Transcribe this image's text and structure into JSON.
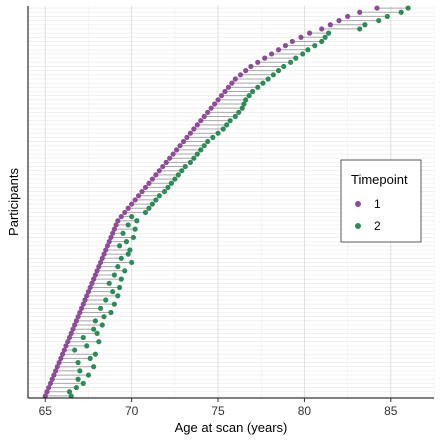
{
  "chart_data": {
    "type": "dumbbell",
    "xlabel": "Age at scan (years)",
    "ylabel": "Participants",
    "xlim": [
      64,
      87.5
    ],
    "xticks": [
      65,
      70,
      75,
      80,
      85
    ],
    "grid": true,
    "legend": {
      "title": "Timepoint",
      "placement": "right",
      "entries": [
        {
          "label": "1",
          "color": "#8E4B98"
        },
        {
          "label": "2",
          "color": "#2E8B57"
        }
      ]
    },
    "colors": {
      "timepoint1": "#8E4B98",
      "timepoint2": "#2E8B57",
      "segment": "#A8A8A8"
    },
    "participants": [
      [
        65.0,
        66.5
      ],
      [
        65.1,
        66.4
      ],
      [
        65.2,
        66.8
      ],
      [
        65.3,
        67.2
      ],
      [
        65.4,
        66.9
      ],
      [
        65.5,
        67.5
      ],
      [
        65.6,
        67.0
      ],
      [
        65.7,
        67.8
      ],
      [
        65.8,
        66.9
      ],
      [
        65.9,
        67.6
      ],
      [
        66.0,
        67.9
      ],
      [
        66.1,
        66.7
      ],
      [
        66.2,
        67.4
      ],
      [
        66.3,
        68.1
      ],
      [
        66.4,
        67.2
      ],
      [
        66.5,
        68.0
      ],
      [
        66.6,
        67.8
      ],
      [
        66.7,
        68.3
      ],
      [
        66.8,
        67.9
      ],
      [
        66.9,
        68.4
      ],
      [
        67.0,
        68.8
      ],
      [
        67.1,
        68.2
      ],
      [
        67.2,
        69.0
      ],
      [
        67.3,
        68.5
      ],
      [
        67.4,
        69.2
      ],
      [
        67.5,
        68.9
      ],
      [
        67.6,
        69.3
      ],
      [
        67.7,
        68.7
      ],
      [
        67.8,
        69.4
      ],
      [
        67.9,
        69.0
      ],
      [
        68.0,
        69.6
      ],
      [
        68.1,
        69.2
      ],
      [
        68.2,
        70.0
      ],
      [
        68.3,
        69.4
      ],
      [
        68.4,
        69.8
      ],
      [
        68.5,
        69.9
      ],
      [
        68.6,
        69.3
      ],
      [
        68.7,
        69.7
      ],
      [
        68.8,
        70.1
      ],
      [
        68.9,
        69.5
      ],
      [
        69.0,
        70.2
      ],
      [
        69.1,
        69.8
      ],
      [
        69.2,
        70.3
      ],
      [
        69.4,
        70.0
      ],
      [
        69.6,
        70.8
      ],
      [
        69.8,
        71.0
      ],
      [
        70.0,
        71.2
      ],
      [
        70.2,
        71.4
      ],
      [
        70.4,
        71.6
      ],
      [
        70.6,
        71.9
      ],
      [
        70.8,
        72.1
      ],
      [
        71.0,
        72.3
      ],
      [
        71.2,
        72.5
      ],
      [
        71.4,
        72.7
      ],
      [
        71.6,
        72.9
      ],
      [
        71.8,
        73.1
      ],
      [
        72.0,
        73.4
      ],
      [
        72.2,
        73.6
      ],
      [
        72.4,
        73.8
      ],
      [
        72.6,
        74.0
      ],
      [
        72.8,
        74.2
      ],
      [
        73.0,
        74.4
      ],
      [
        73.2,
        74.7
      ],
      [
        73.4,
        75.0
      ],
      [
        73.6,
        75.3
      ],
      [
        73.8,
        75.5
      ],
      [
        74.0,
        75.7
      ],
      [
        74.2,
        76.0
      ],
      [
        74.4,
        76.2
      ],
      [
        74.6,
        76.4
      ],
      [
        74.8,
        76.5
      ],
      [
        75.0,
        76.6
      ],
      [
        75.2,
        76.8
      ],
      [
        75.4,
        77.0
      ],
      [
        75.6,
        77.3
      ],
      [
        75.8,
        77.6
      ],
      [
        76.0,
        77.9
      ],
      [
        76.3,
        78.2
      ],
      [
        76.6,
        78.5
      ],
      [
        76.9,
        78.8
      ],
      [
        77.3,
        79.2
      ],
      [
        77.7,
        79.5
      ],
      [
        78.1,
        79.9
      ],
      [
        78.5,
        80.2
      ],
      [
        78.9,
        80.6
      ],
      [
        79.3,
        81.0
      ],
      [
        79.8,
        81.2
      ],
      [
        80.3,
        81.4
      ],
      [
        81.0,
        83.2
      ],
      [
        81.5,
        83.5
      ],
      [
        82.0,
        84.3
      ],
      [
        82.5,
        84.8
      ],
      [
        83.2,
        85.6
      ],
      [
        84.2,
        86.0
      ]
    ]
  }
}
